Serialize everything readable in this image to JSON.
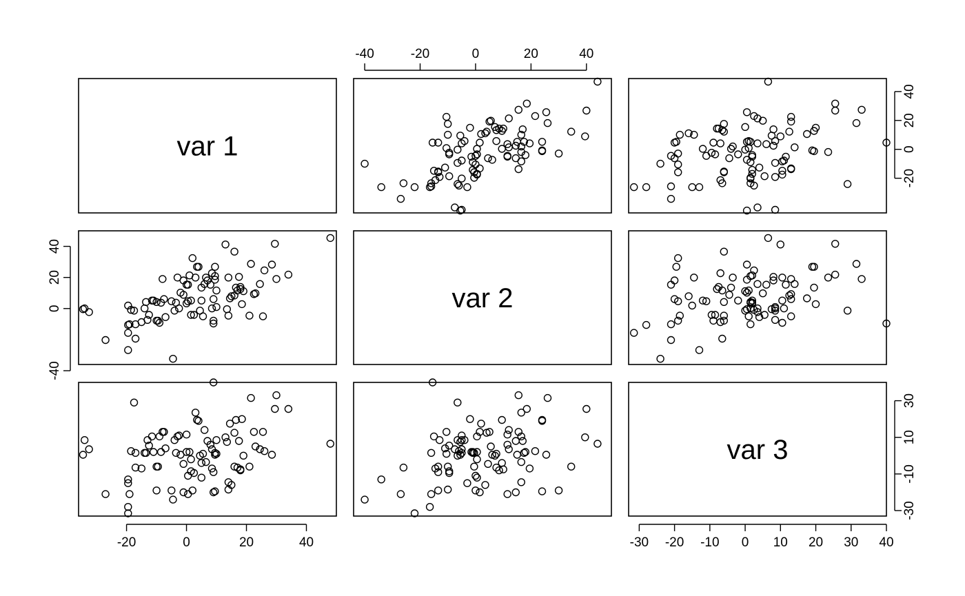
{
  "chart_data": {
    "type": "scatter",
    "variables": [
      "var 1",
      "var 2",
      "var 3"
    ],
    "marker": "open-circle",
    "color": "#000000",
    "grid": false,
    "axis_ranges": {
      "var 1": [
        -36,
        50
      ],
      "var 2": [
        -44,
        49
      ],
      "var 3": [
        -33,
        40
      ]
    },
    "ticks": {
      "var 1": [
        "-20",
        "0",
        "20",
        "40"
      ],
      "var 2": [
        "-40",
        "-20",
        "0",
        "20",
        "40"
      ],
      "var 3": [
        "-30",
        "-10",
        "10",
        "30"
      ],
      "var 3 (bottom)": [
        "-30",
        "-20",
        "-10",
        "0",
        "10",
        "20",
        "30",
        "40"
      ],
      "var 2 (top)": [
        "-40",
        "-20",
        "0",
        "20",
        "40"
      ],
      "var 2 (right)": [
        "-20",
        "0",
        "20",
        "40"
      ],
      "var 1 (left)": [
        "-40",
        "0",
        "20",
        "40"
      ]
    },
    "observations": [
      {
        "var1": -34.5,
        "var2": -5.5,
        "var3": 0.5
      },
      {
        "var1": -34.0,
        "var2": -5.0,
        "var3": 8.5
      },
      {
        "var1": -32.5,
        "var2": -7.5,
        "var3": 3.5
      },
      {
        "var1": -27.0,
        "var2": -27.0,
        "var3": -21.0
      },
      {
        "var1": -19.5,
        "var2": -3.0,
        "var3": -15.0
      },
      {
        "var1": -19.5,
        "var2": -16.5,
        "var3": -28.0
      },
      {
        "var1": -19.5,
        "var2": -22.0,
        "var3": -31.5
      },
      {
        "var1": -19.5,
        "var2": -34.0,
        "var3": -13.0
      },
      {
        "var1": -19.0,
        "var2": -16.0,
        "var3": -21.0
      },
      {
        "var1": -18.5,
        "var2": -6.0,
        "var3": 2.5
      },
      {
        "var1": -17.0,
        "var2": -16.0,
        "var3": 1.5
      },
      {
        "var1": -17.5,
        "var2": -6.5,
        "var3": 29.0
      },
      {
        "var1": -17.0,
        "var2": -26.0,
        "var3": -6.5
      },
      {
        "var1": -15.0,
        "var2": -14.5,
        "var3": -7.0
      },
      {
        "var1": -14.0,
        "var2": -5.0,
        "var3": 1.5
      },
      {
        "var1": -13.5,
        "var2": -0.5,
        "var3": 1.5
      },
      {
        "var1": -13.0,
        "var2": -13.0,
        "var3": 8.5
      },
      {
        "var1": -12.5,
        "var2": -9.5,
        "var3": 5.5
      },
      {
        "var1": -11.5,
        "var2": 0.5,
        "var3": 10.5
      },
      {
        "var1": -11.0,
        "var2": 0.5,
        "var3": 2.0
      },
      {
        "var1": -10.0,
        "var2": -0.5,
        "var3": -6.0
      },
      {
        "var1": -10.0,
        "var2": -13.5,
        "var3": -19.0
      },
      {
        "var1": -9.5,
        "var2": -13.5,
        "var3": -6.0
      },
      {
        "var1": -9.0,
        "var2": -15.0,
        "var3": 10.5
      },
      {
        "var1": -8.5,
        "var2": -1.0,
        "var3": 2.0
      },
      {
        "var1": -8.0,
        "var2": 15.5,
        "var3": 13.0
      },
      {
        "var1": -7.5,
        "var2": 1.5,
        "var3": 13.0
      },
      {
        "var1": -7.0,
        "var2": -11.0,
        "var3": 4.0
      },
      {
        "var1": -5.0,
        "var2": 0.0,
        "var3": -19.0
      },
      {
        "var1": -4.5,
        "var2": -40.0,
        "var3": -24.0
      },
      {
        "var1": -4.0,
        "var2": -6.5,
        "var3": 8.5
      },
      {
        "var1": -3.5,
        "var2": -1.0,
        "var3": 1.5
      },
      {
        "var1": -3.0,
        "var2": 16.5,
        "var3": 10.5
      },
      {
        "var1": -2.5,
        "var2": -5.0,
        "var3": 11.0
      },
      {
        "var1": -2.0,
        "var2": 6.0,
        "var3": 0.5
      },
      {
        "var1": -1.0,
        "var2": 4.5,
        "var3": -4.5
      },
      {
        "var1": -1.0,
        "var2": 14.5,
        "var3": -20.0
      },
      {
        "var1": 0.0,
        "var2": 11.5,
        "var3": 11.5
      },
      {
        "var1": 0.0,
        "var2": -1.5,
        "var3": 2.0
      },
      {
        "var1": 0.5,
        "var2": 0.0,
        "var3": -11.0
      },
      {
        "var1": 0.5,
        "var2": 11.5,
        "var3": -21.0
      },
      {
        "var1": 1.0,
        "var2": 18.0,
        "var3": 2.0
      },
      {
        "var1": 1.5,
        "var2": 0.5,
        "var3": -2.0
      },
      {
        "var1": 1.5,
        "var2": -9.5,
        "var3": -8.5
      },
      {
        "var1": 2.0,
        "var2": 30.0,
        "var3": -19.0
      },
      {
        "var1": 2.5,
        "var2": -9.5,
        "var3": -9.5
      },
      {
        "var1": 3.0,
        "var2": 16.5,
        "var3": 23.5
      },
      {
        "var1": 3.5,
        "var2": 24.0,
        "var3": 19.5
      },
      {
        "var1": 4.0,
        "var2": 24.0,
        "var3": 19.0
      },
      {
        "var1": 4.5,
        "var2": -6.5,
        "var3": 0.0
      },
      {
        "var1": 5.0,
        "var2": 9.5,
        "var3": -4.0
      },
      {
        "var1": 5.0,
        "var2": 0.5,
        "var3": -12.0
      },
      {
        "var1": 5.5,
        "var2": -10.5,
        "var3": 1.0
      },
      {
        "var1": 6.0,
        "var2": 12.0,
        "var3": 14.0
      },
      {
        "var1": 6.5,
        "var2": 16.5,
        "var3": -3.5
      },
      {
        "var1": 7.0,
        "var2": 14.5,
        "var3": 8.0
      },
      {
        "var1": 8.0,
        "var2": 11.5,
        "var3": 6.0
      },
      {
        "var1": 8.5,
        "var2": 19.5,
        "var3": -7.0
      },
      {
        "var1": 8.5,
        "var2": -5.0,
        "var3": 3.5
      },
      {
        "var1": 9.0,
        "var2": 1.5,
        "var3": -20.0
      },
      {
        "var1": 9.0,
        "var2": -13.5,
        "var3": -9.0
      },
      {
        "var1": 9.0,
        "var2": -15.5,
        "var3": 40.0
      },
      {
        "var1": 9.5,
        "var2": 15.0,
        "var3": 0.5
      },
      {
        "var1": 9.5,
        "var2": 17.5,
        "var3": 1.5
      },
      {
        "var1": 9.5,
        "var2": 24.0,
        "var3": -19.5
      },
      {
        "var1": 10.0,
        "var2": -4.0,
        "var3": 8.5
      },
      {
        "var1": 10.0,
        "var2": 7.5,
        "var3": 1.0
      },
      {
        "var1": 13.0,
        "var2": 39.5,
        "var3": 10.0
      },
      {
        "var1": 13.5,
        "var2": -5.5,
        "var3": 7.5
      },
      {
        "var1": 14.0,
        "var2": -10.0,
        "var3": -18.5
      },
      {
        "var1": 14.0,
        "var2": 16.5,
        "var3": -14.5
      },
      {
        "var1": 14.5,
        "var2": 2.0,
        "var3": 17.5
      },
      {
        "var1": 15.0,
        "var2": 3.5,
        "var3": -16.0
      },
      {
        "var1": 16.0,
        "var2": 4.0,
        "var3": 12.5
      },
      {
        "var1": 16.0,
        "var2": 34.5,
        "var3": -6.0
      },
      {
        "var1": 16.5,
        "var2": 9.5,
        "var3": 19.5
      },
      {
        "var1": 17.0,
        "var2": 7.5,
        "var3": -6.5
      },
      {
        "var1": 17.5,
        "var2": 17.0,
        "var3": 8.0
      },
      {
        "var1": 18.0,
        "var2": 10.0,
        "var3": -7.5
      },
      {
        "var1": 18.0,
        "var2": 8.5,
        "var3": -8.0
      },
      {
        "var1": 18.5,
        "var2": -2.0,
        "var3": 20.0
      },
      {
        "var1": 19.0,
        "var2": 7.0,
        "var3": 0.0
      },
      {
        "var1": 21.0,
        "var2": -10.0,
        "var3": -6.0
      },
      {
        "var1": 21.5,
        "var2": 26.0,
        "var3": 31.5
      },
      {
        "var1": 22.5,
        "var2": 5.0,
        "var3": 13.0
      },
      {
        "var1": 23.0,
        "var2": 5.5,
        "var3": 5.0
      },
      {
        "var1": 24.5,
        "var2": 12.0,
        "var3": 3.5
      },
      {
        "var1": 25.5,
        "var2": -10.5,
        "var3": 13.0
      },
      {
        "var1": 26.0,
        "var2": 21.5,
        "var3": 2.5
      },
      {
        "var1": 28.5,
        "var2": 25.5,
        "var3": 0.5
      },
      {
        "var1": 29.5,
        "var2": 40.0,
        "var3": 25.5
      },
      {
        "var1": 30.0,
        "var2": 15.5,
        "var3": 33.0
      },
      {
        "var1": 34.0,
        "var2": 18.5,
        "var3": 25.5
      },
      {
        "var1": 48.0,
        "var2": 44.0,
        "var3": 6.5
      }
    ]
  }
}
